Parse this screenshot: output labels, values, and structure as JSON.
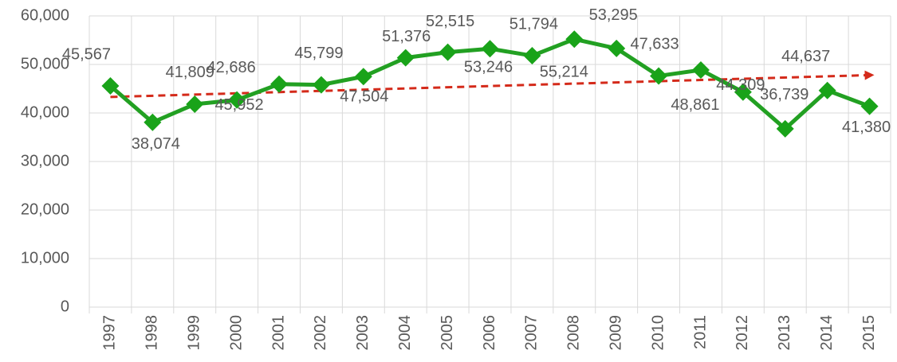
{
  "chart_data": {
    "type": "line",
    "categories": [
      "1997",
      "1998",
      "1999",
      "2000",
      "2001",
      "2002",
      "2003",
      "2004",
      "2005",
      "2006",
      "2007",
      "2008",
      "2009",
      "2010",
      "2011",
      "2012",
      "2013",
      "2014",
      "2015"
    ],
    "values": [
      45567,
      38074,
      41809,
      42686,
      45952,
      45799,
      47504,
      51376,
      52515,
      53246,
      51794,
      55214,
      53295,
      47633,
      48861,
      44309,
      36739,
      44637,
      41380
    ],
    "value_labels": [
      "45,567",
      "38,074",
      "41,809",
      "42,686",
      "45,952",
      "45,799",
      "47,504",
      "51,376",
      "52,515",
      "53,246",
      "51,794",
      "55,214",
      "53,295",
      "47,633",
      "48,861",
      "44,309",
      "36,739",
      "44,637",
      "41,380"
    ],
    "color": "#22a022",
    "trendline": {
      "values": [
        43300,
        47800
      ],
      "color": "#d42a1a"
    },
    "ylim": [
      0,
      60000
    ],
    "yticks": [
      0,
      {
        "value": 10000,
        "label": "10,000"
      },
      {
        "value": 20000,
        "label": "20,000"
      },
      {
        "value": 30000,
        "label": "30,000"
      },
      {
        "value": 40000,
        "label": "40,000"
      },
      {
        "value": 50000,
        "label": "50,000"
      },
      {
        "value": 60000,
        "label": "60,000"
      }
    ],
    "grid": true
  }
}
